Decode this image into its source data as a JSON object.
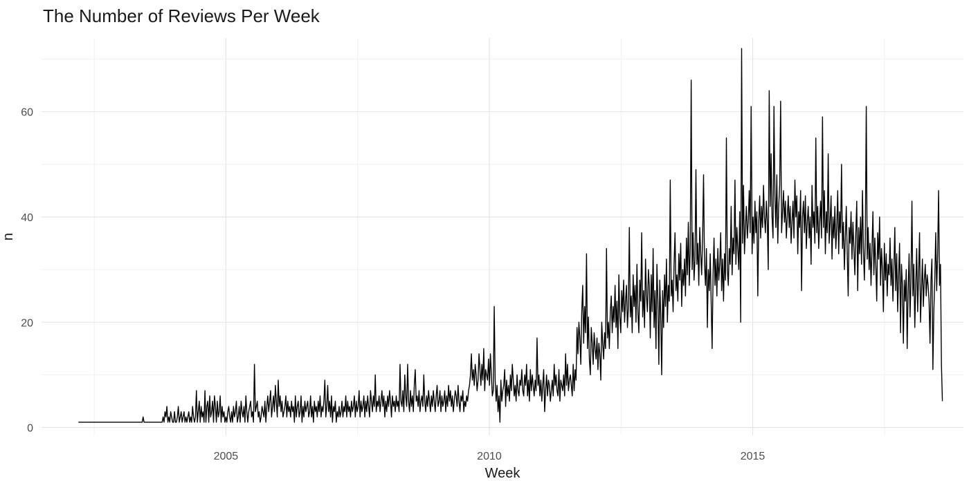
{
  "chart_data": {
    "type": "line",
    "title": "The Number of Reviews Per Week",
    "xlabel": "Week",
    "ylabel": "n",
    "x_range": [
      2002.2,
      2018.6
    ],
    "xlim": [
      2001.5,
      2019.0
    ],
    "ylim": [
      -1.5,
      74
    ],
    "x_ticks": [
      2005,
      2010,
      2015
    ],
    "x_tick_labels": [
      "2005",
      "2010",
      "2015"
    ],
    "x_minor_ticks": [
      2002.5,
      2007.5,
      2012.5,
      2017.5
    ],
    "y_ticks": [
      0,
      20,
      40,
      60
    ],
    "y_tick_labels": [
      "0",
      "20",
      "40",
      "60"
    ],
    "y_minor_ticks": [
      10,
      30,
      50,
      70
    ],
    "grid": true,
    "line_color": "#000000",
    "weekly_n": [
      1,
      1,
      1,
      1,
      1,
      1,
      1,
      1,
      1,
      1,
      1,
      1,
      1,
      1,
      1,
      1,
      1,
      1,
      1,
      1,
      1,
      1,
      1,
      1,
      1,
      1,
      1,
      1,
      1,
      1,
      1,
      1,
      1,
      1,
      1,
      1,
      1,
      1,
      1,
      1,
      1,
      1,
      1,
      1,
      1,
      1,
      1,
      1,
      1,
      1,
      1,
      1,
      1,
      1,
      1,
      1,
      1,
      1,
      1,
      1,
      1,
      1,
      1,
      1,
      1,
      1,
      1,
      1,
      2,
      1,
      1,
      1,
      1,
      1,
      1,
      1,
      1,
      1,
      1,
      1,
      1,
      1,
      1,
      1,
      1,
      1,
      1,
      1,
      1,
      2,
      1,
      3,
      2,
      4,
      1,
      2,
      1,
      3,
      2,
      1,
      1,
      3,
      1,
      1,
      2,
      4,
      1,
      2,
      3,
      1,
      2,
      3,
      1,
      2,
      1,
      2,
      3,
      1,
      2,
      1,
      4,
      2,
      1,
      2,
      7,
      1,
      3,
      5,
      1,
      4,
      2,
      3,
      1,
      7,
      1,
      4,
      5,
      1,
      6,
      2,
      3,
      5,
      1,
      6,
      4,
      1,
      5,
      2,
      3,
      6,
      1,
      4,
      2,
      3,
      1,
      2,
      1,
      3,
      4,
      2,
      1,
      3,
      1,
      4,
      2,
      3,
      5,
      1,
      2,
      4,
      1,
      5,
      3,
      2,
      4,
      1,
      6,
      3,
      1,
      3,
      4,
      5,
      2,
      3,
      1,
      12,
      3,
      4,
      5,
      2,
      3,
      1,
      2,
      4,
      3,
      2,
      5,
      1,
      4,
      6,
      3,
      5,
      7,
      2,
      4,
      6,
      3,
      8,
      5,
      2,
      9,
      4,
      6,
      3,
      5,
      2,
      3,
      4,
      6,
      2,
      5,
      3,
      4,
      2,
      5,
      3,
      4,
      1,
      6,
      2,
      4,
      5,
      2,
      3,
      6,
      1,
      4,
      2,
      5,
      3,
      4,
      5,
      2,
      3,
      6,
      2,
      4,
      1,
      5,
      3,
      4,
      2,
      5,
      3,
      6,
      2,
      4,
      3,
      5,
      9,
      2,
      4,
      8,
      3,
      5,
      2,
      6,
      1,
      4,
      3,
      5,
      1,
      3,
      2,
      4,
      2,
      3,
      5,
      2,
      4,
      3,
      6,
      2,
      5,
      3,
      4,
      2,
      5,
      3,
      4,
      6,
      2,
      5,
      3,
      4,
      7,
      2,
      5,
      3,
      4,
      6,
      2,
      5,
      3,
      6,
      4,
      2,
      7,
      5,
      3,
      6,
      4,
      10,
      3,
      5,
      4,
      6,
      3,
      5,
      7,
      4,
      6,
      2,
      5,
      3,
      6,
      4,
      7,
      5,
      2,
      6,
      4,
      5,
      3,
      6,
      4,
      5,
      3,
      12,
      5,
      4,
      7,
      3,
      10,
      6,
      4,
      12,
      5,
      3,
      7,
      4,
      6,
      3,
      8,
      11,
      5,
      6,
      4,
      7,
      3,
      5,
      6,
      4,
      10,
      5,
      3,
      6,
      4,
      7,
      5,
      3,
      6,
      4,
      7,
      5,
      3,
      6,
      8,
      4,
      5,
      7,
      3,
      6,
      4,
      5,
      7,
      3,
      6,
      4,
      8,
      5,
      7,
      4,
      6,
      3,
      5,
      7,
      6,
      4,
      8,
      5,
      3,
      6,
      5,
      7,
      3,
      5,
      4,
      6,
      5,
      7,
      8,
      10,
      14,
      9,
      11,
      8,
      12,
      10,
      7,
      9,
      14,
      11,
      8,
      12,
      9,
      15,
      7,
      11,
      10,
      9,
      13,
      8,
      14,
      10,
      6,
      7,
      23,
      9,
      5,
      8,
      3,
      6,
      1,
      9,
      5,
      7,
      8,
      11,
      4,
      9,
      6,
      8,
      5,
      10,
      7,
      12,
      9,
      6,
      8,
      5,
      10,
      7,
      6,
      9,
      8,
      11,
      7,
      6,
      10,
      8,
      12,
      6,
      9,
      5,
      11,
      7,
      10,
      8,
      6,
      9,
      7,
      17,
      8,
      10,
      6,
      9,
      5,
      8,
      11,
      3,
      7,
      10,
      6,
      9,
      8,
      5,
      7,
      9,
      6,
      12,
      8,
      10,
      7,
      6,
      11,
      5,
      9,
      8,
      7,
      10,
      6,
      14,
      8,
      12,
      7,
      9,
      10,
      8,
      6,
      12,
      7,
      11,
      9,
      19,
      14,
      20,
      17,
      12,
      22,
      27,
      16,
      23,
      18,
      33,
      15,
      21,
      13,
      10,
      19,
      16,
      12,
      18,
      15,
      13,
      17,
      11,
      16,
      14,
      9,
      20,
      16,
      13,
      18,
      15,
      34,
      17,
      20,
      15,
      22,
      25,
      18,
      23,
      20,
      27,
      19,
      24,
      15,
      29,
      21,
      18,
      26,
      22,
      28,
      20,
      24,
      27,
      19,
      23,
      38,
      21,
      25,
      18,
      29,
      23,
      27,
      20,
      31,
      22,
      18,
      28,
      24,
      37,
      21,
      26,
      19,
      32,
      25,
      22,
      30,
      27,
      17,
      29,
      22,
      34,
      19,
      26,
      15,
      31,
      24,
      12,
      28,
      21,
      10,
      26,
      19,
      29,
      23,
      32,
      20,
      27,
      24,
      47,
      25,
      28,
      22,
      31,
      37,
      26,
      29,
      24,
      33,
      28,
      35,
      23,
      30,
      27,
      32,
      25,
      36,
      29,
      39,
      27,
      34,
      66,
      30,
      37,
      28,
      32,
      49,
      31,
      35,
      27,
      38,
      33,
      29,
      36,
      48,
      31,
      27,
      34,
      19,
      30,
      26,
      33,
      24,
      15,
      29,
      36,
      27,
      32,
      25,
      34,
      28,
      31,
      37,
      26,
      32,
      24,
      33,
      28,
      55,
      30,
      27,
      34,
      31,
      42,
      29,
      36,
      33,
      47,
      31,
      38,
      34,
      30,
      41,
      20,
      72,
      35,
      46,
      33,
      38,
      42,
      36,
      39,
      45,
      37,
      61,
      33,
      40,
      35,
      43,
      37,
      41,
      25,
      39,
      44,
      36,
      42,
      38,
      46,
      40,
      37,
      43,
      39,
      30,
      64,
      42,
      52,
      40,
      36,
      61,
      44,
      38,
      48,
      35,
      42,
      46,
      62,
      37,
      41,
      45,
      39,
      43,
      36,
      40,
      44,
      38,
      42,
      35,
      39,
      43,
      36,
      47,
      40,
      44,
      33,
      41,
      38,
      45,
      26,
      40,
      43,
      37,
      44,
      34,
      39,
      42,
      36,
      40,
      31,
      46,
      38,
      41,
      35,
      55,
      37,
      42,
      34,
      39,
      43,
      36,
      59,
      38,
      45,
      33,
      41,
      37,
      52,
      35,
      39,
      44,
      32,
      40,
      36,
      42,
      34,
      38,
      45,
      33,
      41,
      37,
      50,
      34,
      39,
      30,
      36,
      42,
      33,
      25,
      38,
      35,
      41,
      32,
      39,
      34,
      29,
      37,
      43,
      26,
      38,
      33,
      40,
      31,
      45,
      34,
      28,
      36,
      61,
      32,
      38,
      30,
      35,
      27,
      34,
      41,
      29,
      36,
      31,
      24,
      37,
      32,
      40,
      27,
      34,
      30,
      22,
      35,
      28,
      33,
      25,
      31,
      29,
      36,
      27,
      32,
      24,
      30,
      38,
      26,
      33,
      22,
      29,
      35,
      18,
      31,
      27,
      16,
      28,
      24,
      30,
      15,
      26,
      33,
      21,
      28,
      43,
      25,
      31,
      19,
      27,
      34,
      22,
      29,
      37,
      20,
      26,
      32,
      23,
      28,
      31,
      25,
      29,
      27,
      24,
      16,
      28,
      32,
      11,
      22,
      28,
      37,
      26,
      33,
      45,
      27,
      31,
      12,
      5
    ]
  }
}
